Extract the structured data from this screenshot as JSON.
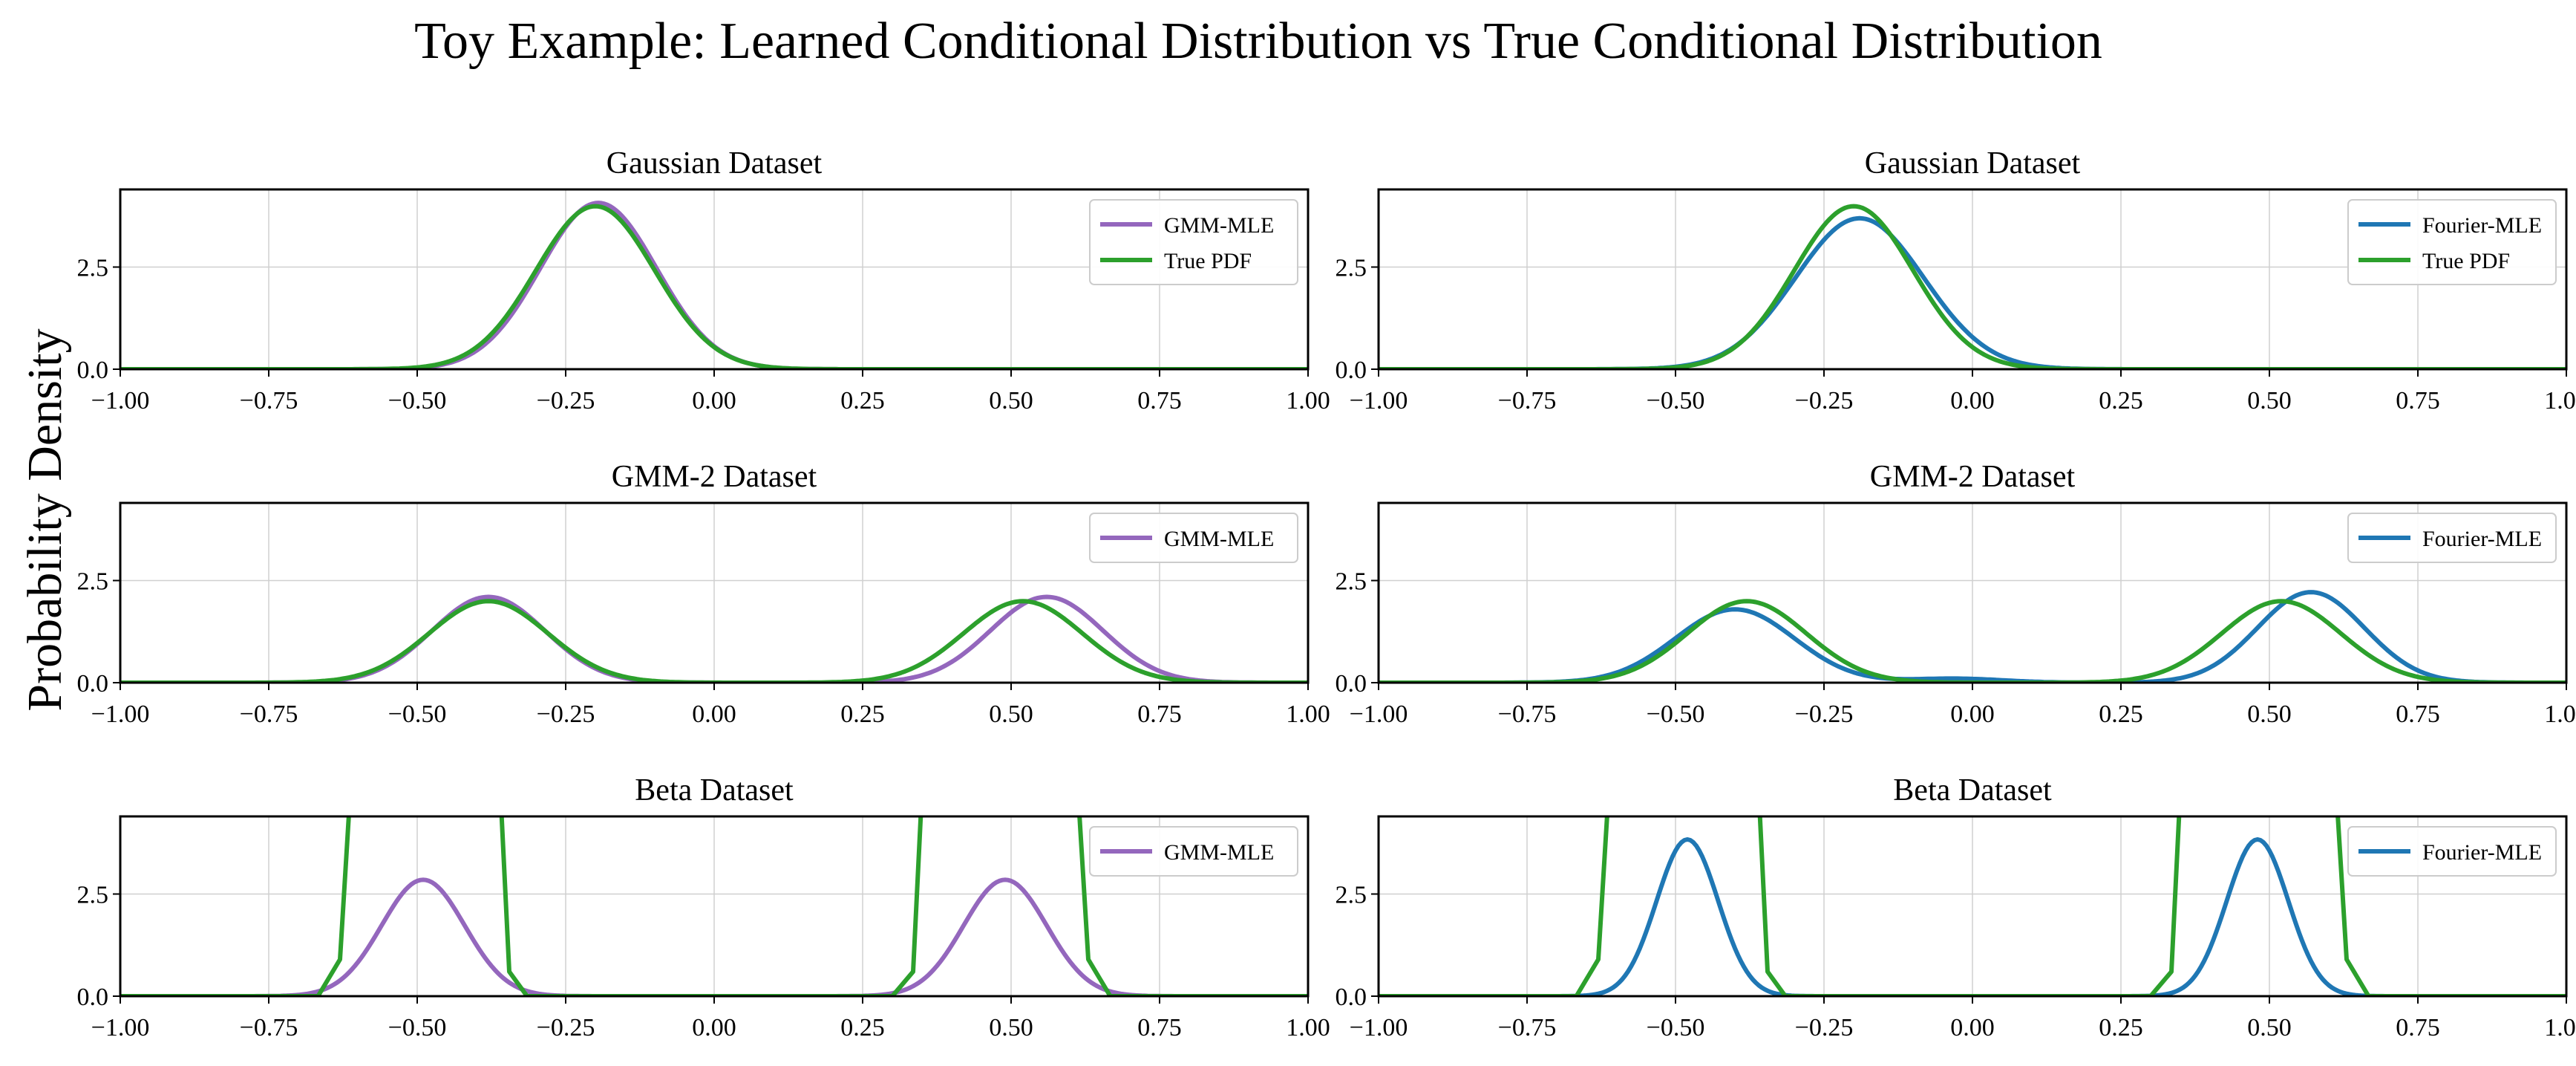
{
  "figure": {
    "suptitle": "Toy Example: Learned Conditional Distribution vs True Conditional Distribution",
    "ylabel": "Probability Density"
  },
  "colors": {
    "gmm": "#9467bd",
    "fourier": "#1f77b4",
    "true": "#2ca02c",
    "grid": "#d0d0d0"
  },
  "chart_data": [
    {
      "type": "line",
      "title": "Gaussian Dataset",
      "xlim": [
        -1.0,
        1.0
      ],
      "ylim": [
        0,
        4.4
      ],
      "xticks": [
        "-1.00",
        "-0.75",
        "-0.50",
        "-0.25",
        "0.00",
        "0.25",
        "0.50",
        "0.75",
        "1.00"
      ],
      "yticks": [
        "0.0",
        "2.5"
      ],
      "grid": true,
      "legend_position": "top-right",
      "series": [
        {
          "name": "GMM-MLE",
          "color_key": "gmm",
          "components": [
            {
              "weight": 1.0,
              "mean": -0.195,
              "sd": 0.098
            }
          ]
        },
        {
          "name": "True PDF",
          "color_key": "true",
          "components": [
            {
              "weight": 1.0,
              "mean": -0.2,
              "sd": 0.1
            }
          ]
        }
      ]
    },
    {
      "type": "line",
      "title": "Gaussian Dataset",
      "xlim": [
        -1.0,
        1.0
      ],
      "ylim": [
        0,
        4.4
      ],
      "xticks": [
        "-1.00",
        "-0.75",
        "-0.50",
        "-0.25",
        "0.00",
        "0.25",
        "0.50",
        "0.75",
        "1.00"
      ],
      "yticks": [
        "0.0",
        "2.5"
      ],
      "grid": true,
      "legend_position": "top-right",
      "series": [
        {
          "name": "Fourier-MLE",
          "color_key": "fourier",
          "components": [
            {
              "weight": 1.0,
              "mean": -0.19,
              "sd": 0.108
            }
          ]
        },
        {
          "name": "True PDF",
          "color_key": "true",
          "components": [
            {
              "weight": 1.0,
              "mean": -0.2,
              "sd": 0.1
            }
          ]
        }
      ]
    },
    {
      "type": "line",
      "title": "GMM-2 Dataset",
      "xlim": [
        -1.0,
        1.0
      ],
      "ylim": [
        0,
        4.4
      ],
      "xticks": [
        "-1.00",
        "-0.75",
        "-0.50",
        "-0.25",
        "0.00",
        "0.25",
        "0.50",
        "0.75",
        "1.00"
      ],
      "yticks": [
        "0.0",
        "2.5"
      ],
      "grid": true,
      "legend_position": "top-right",
      "series": [
        {
          "name": "GMM-MLE",
          "color_key": "gmm",
          "components": [
            {
              "weight": 0.5,
              "mean": -0.38,
              "sd": 0.095
            },
            {
              "weight": 0.5,
              "mean": 0.56,
              "sd": 0.095
            }
          ]
        },
        {
          "name": "",
          "color_key": "true",
          "components": [
            {
              "weight": 0.5,
              "mean": -0.38,
              "sd": 0.1
            },
            {
              "weight": 0.5,
              "mean": 0.52,
              "sd": 0.1
            }
          ]
        }
      ]
    },
    {
      "type": "line",
      "title": "GMM-2 Dataset",
      "xlim": [
        -1.0,
        1.0
      ],
      "ylim": [
        0,
        4.4
      ],
      "xticks": [
        "-1.00",
        "-0.75",
        "-0.50",
        "-0.25",
        "0.00",
        "0.25",
        "0.50",
        "0.75",
        "1.00"
      ],
      "yticks": [
        "0.0",
        "2.5"
      ],
      "grid": true,
      "legend_position": "top-right",
      "series": [
        {
          "name": "Fourier-MLE",
          "color_key": "fourier",
          "components": [
            {
              "weight": 0.45,
              "mean": -0.4,
              "sd": 0.1
            },
            {
              "weight": 0.5,
              "mean": 0.57,
              "sd": 0.09
            },
            {
              "weight": 0.02,
              "mean": -0.03,
              "sd": 0.08
            }
          ]
        },
        {
          "name": "",
          "color_key": "true",
          "components": [
            {
              "weight": 0.5,
              "mean": -0.38,
              "sd": 0.1
            },
            {
              "weight": 0.5,
              "mean": 0.52,
              "sd": 0.1
            }
          ]
        }
      ]
    },
    {
      "type": "line",
      "title": "Beta Dataset",
      "xlim": [
        -1.0,
        1.0
      ],
      "ylim": [
        0,
        4.4
      ],
      "xticks": [
        "-1.00",
        "-0.75",
        "-0.50",
        "-0.25",
        "0.00",
        "0.25",
        "0.50",
        "0.75",
        "1.00"
      ],
      "yticks": [
        "0.0",
        "2.5"
      ],
      "grid": true,
      "legend_position": "top-right",
      "series": [
        {
          "name": "GMM-MLE",
          "color_key": "gmm",
          "components": [
            {
              "weight": 0.5,
              "mean": -0.49,
              "sd": 0.07
            },
            {
              "weight": 0.5,
              "mean": 0.49,
              "sd": 0.07
            }
          ]
        },
        {
          "name": "",
          "color_key": "true",
          "points": [
            [
              -1.0,
              0
            ],
            [
              -0.667,
              0
            ],
            [
              -0.63,
              0.9
            ],
            [
              -0.6,
              8
            ],
            [
              -0.37,
              8
            ],
            [
              -0.345,
              0.6
            ],
            [
              -0.315,
              0
            ],
            [
              0.3,
              0
            ],
            [
              0.335,
              0.6
            ],
            [
              0.36,
              8
            ],
            [
              0.6,
              8
            ],
            [
              0.63,
              0.9
            ],
            [
              0.667,
              0
            ],
            [
              1.0,
              0
            ]
          ]
        }
      ]
    },
    {
      "type": "line",
      "title": "Beta Dataset",
      "xlim": [
        -1.0,
        1.0
      ],
      "ylim": [
        0,
        4.4
      ],
      "xticks": [
        "-1.00",
        "-0.75",
        "-0.50",
        "-0.25",
        "0.00",
        "0.25",
        "0.50",
        "0.75",
        "1.00"
      ],
      "yticks": [
        "0.0",
        "2.5"
      ],
      "grid": true,
      "legend_position": "top-right",
      "series": [
        {
          "name": "Fourier-MLE",
          "color_key": "fourier",
          "components": [
            {
              "weight": 0.5,
              "mean": -0.48,
              "sd": 0.052
            },
            {
              "weight": 0.5,
              "mean": 0.48,
              "sd": 0.052
            }
          ]
        },
        {
          "name": "",
          "color_key": "true",
          "points": [
            [
              -1.0,
              0
            ],
            [
              -0.667,
              0
            ],
            [
              -0.63,
              0.9
            ],
            [
              -0.6,
              8
            ],
            [
              -0.37,
              8
            ],
            [
              -0.345,
              0.6
            ],
            [
              -0.315,
              0
            ],
            [
              0.3,
              0
            ],
            [
              0.335,
              0.6
            ],
            [
              0.36,
              8
            ],
            [
              0.6,
              8
            ],
            [
              0.63,
              0.9
            ],
            [
              0.667,
              0
            ],
            [
              1.0,
              0
            ]
          ]
        }
      ]
    }
  ]
}
